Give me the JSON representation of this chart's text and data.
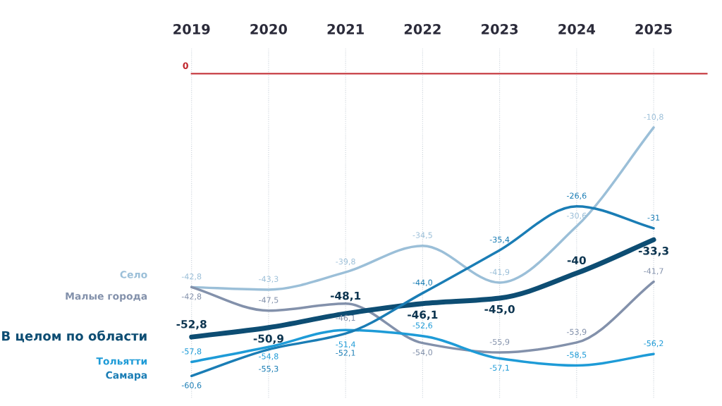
{
  "chart_data": {
    "type": "line",
    "categories": [
      "2019",
      "2020",
      "2021",
      "2022",
      "2023",
      "2024",
      "2025"
    ],
    "ylim": [
      -65,
      5
    ],
    "grid": "x",
    "data_labels": true,
    "line_style": "solid",
    "marker": "none",
    "tick_labels": "x",
    "ref_lines": [
      {
        "axis": "y",
        "value": 0,
        "label": "0",
        "color": "#c0262d",
        "line_style": "solid"
      }
    ],
    "series": [
      {
        "name": "Село",
        "color": "#9bbfd8",
        "values": [
          -42.8,
          -43.3,
          -39.8,
          -34.5,
          -41.9,
          -30.6,
          -10.8
        ],
        "value_labels": [
          "-42,8",
          "-43,3",
          "-39,8",
          "-34,5",
          "-41,9",
          "-30,6",
          "-10,8"
        ]
      },
      {
        "name": "Малые города",
        "color": "#8391ab",
        "values": [
          -42.8,
          -47.5,
          -46.1,
          -54.0,
          -55.9,
          -53.9,
          -41.7
        ],
        "value_labels": [
          "-42,8",
          "-47,5",
          "-46,1",
          "-54,0",
          "-55,9",
          "-53,9",
          "-41,7"
        ]
      },
      {
        "name": "В целом по области",
        "color": "#0d4d73",
        "values": [
          -52.8,
          -50.9,
          -48.1,
          -46.1,
          -45.0,
          -40,
          -33.3
        ],
        "value_labels": [
          "-52,8",
          "-50,9",
          "-48,1",
          "-46,1",
          "-45,0",
          "-40",
          "-33,3"
        ]
      },
      {
        "name": "Тольятти",
        "color": "#1e9bd7",
        "values": [
          -57.8,
          -54.8,
          -51.4,
          -52.6,
          -57.1,
          -58.5,
          -56.2
        ],
        "value_labels": [
          "-57,8",
          "-54,8",
          "-51,4",
          "-52,6",
          "-57,1",
          "-58,5",
          "-56,2"
        ]
      },
      {
        "name": "Самара",
        "color": "#1a7db5",
        "values": [
          -60.6,
          -55.3,
          -52.1,
          -44.0,
          -35.4,
          -26.6,
          -31
        ],
        "value_labels": [
          "-60,6",
          "-55,3",
          "-52,1",
          "-44,0",
          "-35,4",
          "-26,6",
          "-31"
        ]
      }
    ]
  }
}
